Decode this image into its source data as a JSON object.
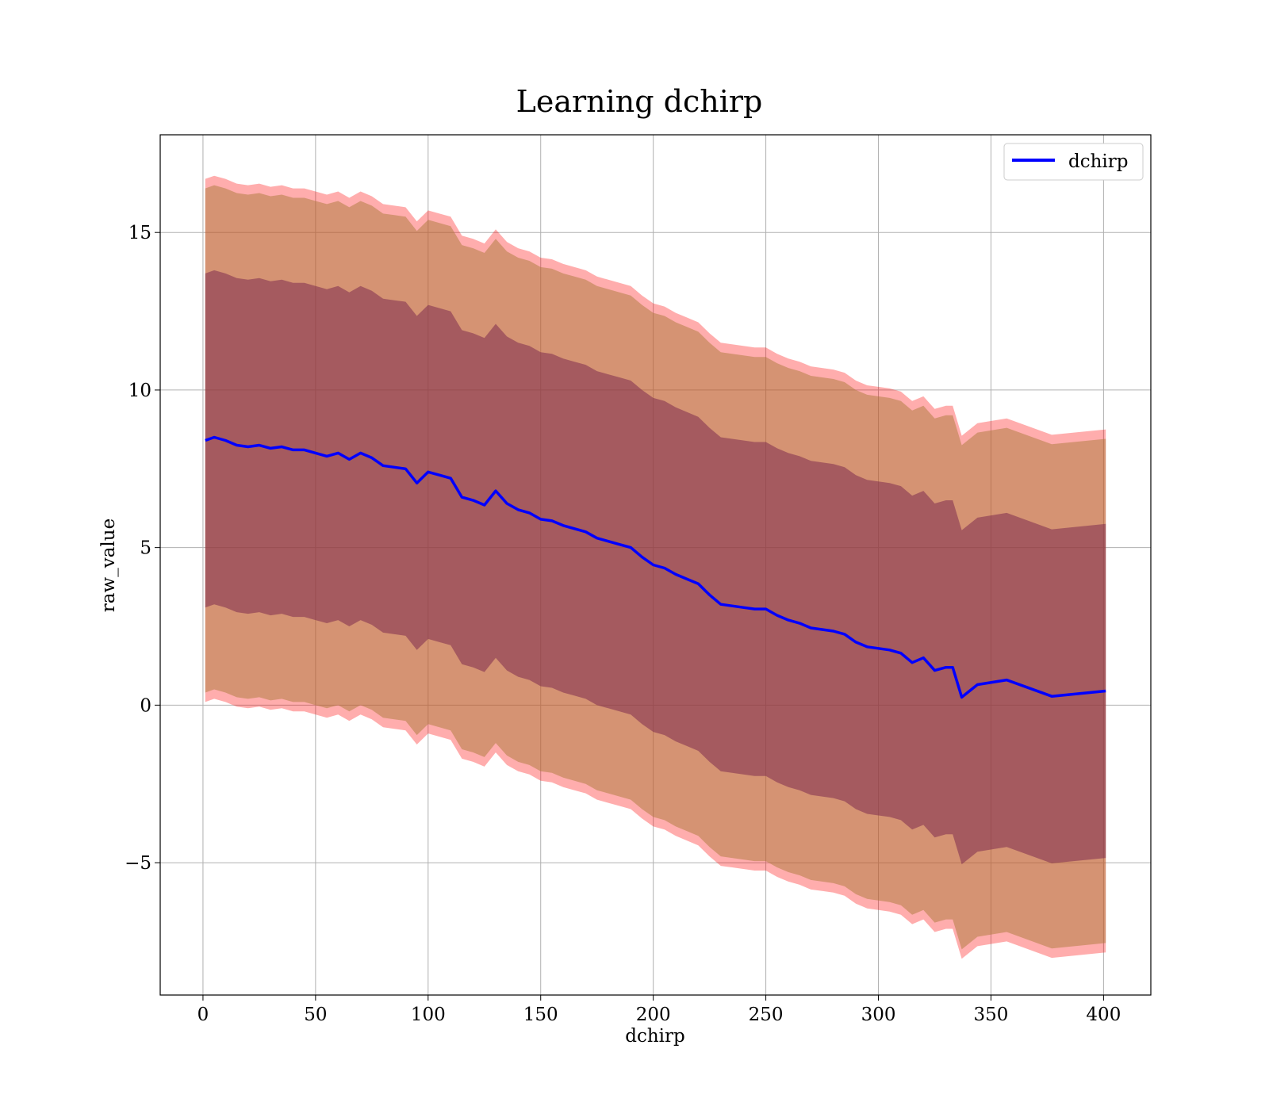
{
  "chart_data": {
    "type": "line",
    "title": "Learning dchirp",
    "xlabel": "dchirp",
    "ylabel": "raw_value",
    "xlim": [
      -19,
      421
    ],
    "ylim": [
      -9.2,
      18.1
    ],
    "xticks": [
      0,
      50,
      100,
      150,
      200,
      250,
      300,
      350,
      400
    ],
    "yticks": [
      -5,
      0,
      5,
      10,
      15
    ],
    "xtick_labels": [
      "0",
      "50",
      "100",
      "150",
      "200",
      "250",
      "300",
      "350",
      "400"
    ],
    "ytick_labels": [
      "−5",
      "0",
      "5",
      "10",
      "15"
    ],
    "grid": true,
    "legend": {
      "position": "top-right",
      "entries": [
        "dchirp"
      ]
    },
    "colors": {
      "line": "#0000ff",
      "outer_band": "#ff0000",
      "mid_band": "#ab7a3a",
      "inner_band": "#7e2c4f"
    },
    "series": [
      {
        "name": "dchirp",
        "x": [
          1,
          5,
          10,
          15,
          20,
          25,
          30,
          35,
          40,
          45,
          50,
          55,
          60,
          65,
          70,
          75,
          80,
          85,
          90,
          95,
          100,
          105,
          110,
          115,
          120,
          125,
          130,
          135,
          140,
          145,
          150,
          155,
          160,
          165,
          170,
          175,
          180,
          185,
          190,
          195,
          200,
          205,
          210,
          215,
          220,
          225,
          230,
          235,
          240,
          245,
          250,
          255,
          260,
          265,
          270,
          275,
          280,
          285,
          290,
          295,
          300,
          305,
          310,
          315,
          320,
          325,
          330,
          333,
          337,
          344,
          357,
          377,
          401
        ],
        "y": [
          8.4,
          8.5,
          8.4,
          8.25,
          8.2,
          8.25,
          8.15,
          8.2,
          8.1,
          8.1,
          8.0,
          7.9,
          8.0,
          7.8,
          8.0,
          7.85,
          7.6,
          7.55,
          7.5,
          7.05,
          7.4,
          7.3,
          7.2,
          6.6,
          6.5,
          6.35,
          6.8,
          6.4,
          6.2,
          6.1,
          5.9,
          5.85,
          5.7,
          5.6,
          5.5,
          5.3,
          5.2,
          5.1,
          5.0,
          4.7,
          4.45,
          4.35,
          4.15,
          4.0,
          3.85,
          3.5,
          3.2,
          3.15,
          3.1,
          3.05,
          3.05,
          2.85,
          2.7,
          2.6,
          2.45,
          2.4,
          2.35,
          2.25,
          2.0,
          1.85,
          1.8,
          1.75,
          1.65,
          1.35,
          1.5,
          1.1,
          1.2,
          1.2,
          0.25,
          0.65,
          0.8,
          0.28,
          0.45
        ]
      }
    ],
    "bands": [
      {
        "half_width": 8.3
      },
      {
        "half_width": 8.0
      },
      {
        "half_width": 5.3
      }
    ]
  }
}
